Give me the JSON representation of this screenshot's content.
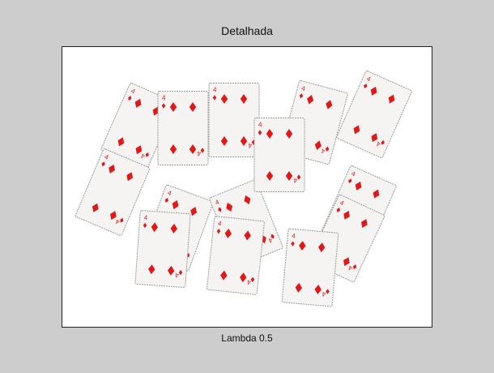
{
  "figure": {
    "title": "Detalhada",
    "xlabel": "Lambda 0.5"
  },
  "colors": {
    "figure_background": "#cdcdcd",
    "axes_background": "#ffffff",
    "card_face": "#f6f4f2",
    "card_border": "#9a9a9a",
    "suit": "#e01818"
  },
  "cards": {
    "rank": "4",
    "suit": "diamond-icon",
    "count": 14
  }
}
